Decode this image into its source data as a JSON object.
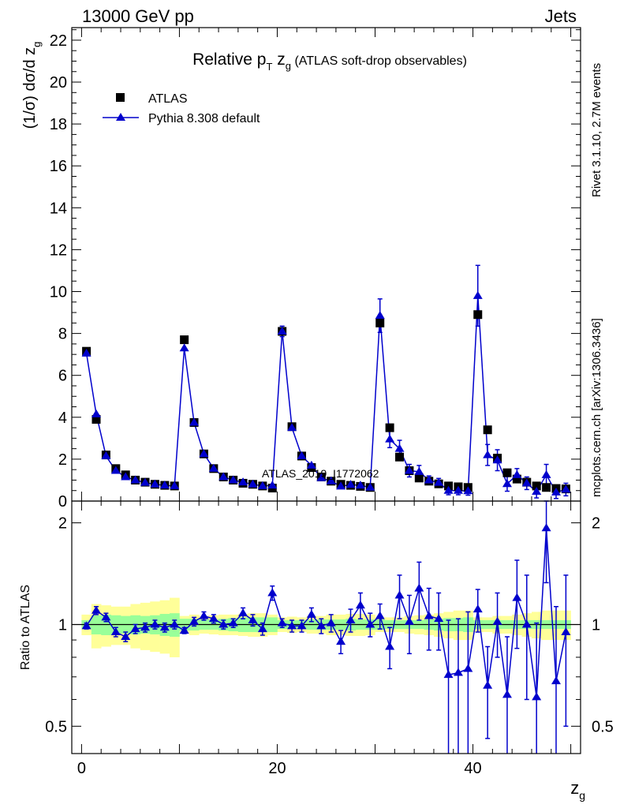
{
  "header": {
    "left": "13000 GeV pp",
    "right": "Jets"
  },
  "side_text": {
    "rivet": "Rivet 3.1.10,  2.7M events",
    "mcplots": "mcplots.cern.ch [arXiv:1306.3436]"
  },
  "watermark": "ATLAS_2019_I1772062",
  "legend": {
    "data_label": "ATLAS",
    "mc_label": "Pythia 8.308 default"
  },
  "colors": {
    "data": "#000000",
    "mc": "#0000cc",
    "band_inner": "#99ff99",
    "band_outer": "#ffff99",
    "watermark": "#999999"
  },
  "chart_data": [
    {
      "type": "scatter",
      "panel": "main",
      "title_parts": {
        "pre": "Relative p",
        "sub1": "T",
        "mid": " z",
        "sub2": "g",
        "post": " (ATLAS soft-drop observables)"
      },
      "ylabel": "(1/σ) dσ/d z",
      "ylabel_sub": "g",
      "xlim": [
        -1,
        51
      ],
      "ylim": [
        0,
        22.6
      ],
      "yticks": [
        0,
        2,
        4,
        6,
        8,
        10,
        12,
        14,
        16,
        18,
        20,
        22
      ],
      "grid": false,
      "legend_position": "top-left",
      "x": [
        0.5,
        1.5,
        2.5,
        3.5,
        4.5,
        5.5,
        6.5,
        7.5,
        8.5,
        9.5,
        10.5,
        11.5,
        12.5,
        13.5,
        14.5,
        15.5,
        16.5,
        17.5,
        18.5,
        19.5,
        20.5,
        21.5,
        22.5,
        23.5,
        24.5,
        25.5,
        26.5,
        27.5,
        28.5,
        29.5,
        30.5,
        31.5,
        32.5,
        33.5,
        34.5,
        35.5,
        36.5,
        37.5,
        38.5,
        39.5,
        40.5,
        41.5,
        42.5,
        43.5,
        44.5,
        45.5,
        46.5,
        47.5,
        48.5,
        49.5
      ],
      "series": [
        {
          "name": "ATLAS",
          "marker": "square",
          "values": [
            7.15,
            3.9,
            2.2,
            1.55,
            1.25,
            1.0,
            0.9,
            0.8,
            0.75,
            0.72,
            7.7,
            3.75,
            2.25,
            1.55,
            1.15,
            1.0,
            0.85,
            0.8,
            0.72,
            0.62,
            8.1,
            3.55,
            2.15,
            1.6,
            1.15,
            0.95,
            0.8,
            0.75,
            0.7,
            0.65,
            8.5,
            3.5,
            2.1,
            1.45,
            1.1,
            0.95,
            0.82,
            0.72,
            0.68,
            0.65,
            8.9,
            3.4,
            2.05,
            1.35,
            1.05,
            0.9,
            0.72,
            0.65,
            0.6,
            0.58
          ]
        },
        {
          "name": "Pythia 8.308 default",
          "marker": "triangle",
          "values": [
            7.05,
            4.15,
            2.15,
            1.45,
            1.15,
            1.0,
            0.88,
            0.8,
            0.75,
            0.72,
            7.3,
            3.75,
            2.25,
            1.55,
            1.15,
            1.0,
            0.9,
            0.8,
            0.72,
            0.75,
            8.1,
            3.5,
            2.15,
            1.7,
            1.1,
            0.95,
            0.7,
            0.78,
            0.75,
            0.65,
            8.85,
            2.95,
            2.5,
            1.45,
            1.4,
            1.0,
            0.88,
            0.5,
            0.5,
            0.48,
            9.8,
            2.2,
            1.95,
            0.82,
            1.25,
            0.85,
            0.45,
            1.25,
            0.42,
            0.55
          ],
          "errors": [
            0.1,
            0.1,
            0.08,
            0.08,
            0.07,
            0.06,
            0.06,
            0.05,
            0.05,
            0.05,
            0.15,
            0.1,
            0.1,
            0.08,
            0.06,
            0.06,
            0.06,
            0.05,
            0.05,
            0.05,
            0.25,
            0.15,
            0.1,
            0.1,
            0.08,
            0.07,
            0.07,
            0.07,
            0.06,
            0.05,
            0.8,
            0.4,
            0.4,
            0.3,
            0.3,
            0.2,
            0.2,
            0.2,
            0.2,
            0.2,
            1.45,
            0.5,
            0.5,
            0.35,
            0.3,
            0.3,
            0.3,
            0.5,
            0.3,
            0.3
          ]
        }
      ]
    },
    {
      "type": "scatter",
      "panel": "ratio",
      "ylabel": "Ratio to ATLAS",
      "xlabel": "z",
      "xlabel_sub": "g",
      "xlim": [
        -1,
        51
      ],
      "ylim": [
        0.415,
        2.32
      ],
      "log_y": true,
      "yticks": [
        0.5,
        1,
        2
      ],
      "xticks": [
        0,
        20,
        40
      ],
      "grid": false,
      "reference_line": 1,
      "band_inner_halfwidth": [
        0.03,
        0.065,
        0.07,
        0.065,
        0.06,
        0.065,
        0.06,
        0.065,
        0.075,
        0.08,
        0.04,
        0.04,
        0.035,
        0.035,
        0.04,
        0.045,
        0.05,
        0.05,
        0.05,
        0.05,
        0.03,
        0.03,
        0.03,
        0.035,
        0.035,
        0.035,
        0.035,
        0.04,
        0.035,
        0.035,
        0.035,
        0.03,
        0.03,
        0.03,
        0.03,
        0.035,
        0.04,
        0.045,
        0.045,
        0.05,
        0.03,
        0.03,
        0.03,
        0.03,
        0.03,
        0.03,
        0.03,
        0.03,
        0.03,
        0.03
      ],
      "band_outer_halfwidth": [
        0.07,
        0.15,
        0.14,
        0.13,
        0.13,
        0.15,
        0.16,
        0.17,
        0.18,
        0.2,
        0.06,
        0.07,
        0.06,
        0.065,
        0.07,
        0.07,
        0.075,
        0.08,
        0.08,
        0.07,
        0.05,
        0.055,
        0.05,
        0.06,
        0.06,
        0.07,
        0.07,
        0.075,
        0.075,
        0.07,
        0.05,
        0.05,
        0.05,
        0.06,
        0.065,
        0.07,
        0.08,
        0.09,
        0.1,
        0.1,
        0.05,
        0.05,
        0.06,
        0.06,
        0.07,
        0.08,
        0.09,
        0.1,
        0.1,
        0.1
      ],
      "x": [
        0.5,
        1.5,
        2.5,
        3.5,
        4.5,
        5.5,
        6.5,
        7.5,
        8.5,
        9.5,
        10.5,
        11.5,
        12.5,
        13.5,
        14.5,
        15.5,
        16.5,
        17.5,
        18.5,
        19.5,
        20.5,
        21.5,
        22.5,
        23.5,
        24.5,
        25.5,
        26.5,
        27.5,
        28.5,
        29.5,
        30.5,
        31.5,
        32.5,
        33.5,
        34.5,
        35.5,
        36.5,
        37.5,
        38.5,
        39.5,
        40.5,
        41.5,
        42.5,
        43.5,
        44.5,
        45.5,
        46.5,
        47.5,
        48.5,
        49.5
      ],
      "series": [
        {
          "name": "Pythia 8.308 default",
          "marker": "triangle",
          "values": [
            0.99,
            1.1,
            1.05,
            0.95,
            0.92,
            0.97,
            0.98,
            1.0,
            0.98,
            1.0,
            0.96,
            1.02,
            1.06,
            1.04,
            1.0,
            1.01,
            1.08,
            1.03,
            0.97,
            1.24,
            1.01,
            0.99,
            0.99,
            1.07,
            0.99,
            1.01,
            0.89,
            1.03,
            1.14,
            1.0,
            1.06,
            0.86,
            1.22,
            1.02,
            1.28,
            1.06,
            1.04,
            0.71,
            0.72,
            0.74,
            1.11,
            0.66,
            1.02,
            0.62,
            1.2,
            1.0,
            0.61,
            1.93,
            0.68,
            0.95
          ],
          "errors": [
            0.02,
            0.03,
            0.03,
            0.03,
            0.03,
            0.03,
            0.03,
            0.03,
            0.03,
            0.03,
            0.02,
            0.03,
            0.03,
            0.03,
            0.03,
            0.03,
            0.04,
            0.04,
            0.04,
            0.06,
            0.03,
            0.04,
            0.04,
            0.05,
            0.05,
            0.06,
            0.07,
            0.08,
            0.1,
            0.08,
            0.09,
            0.12,
            0.18,
            0.2,
            0.25,
            0.22,
            0.2,
            0.32,
            0.32,
            0.35,
            0.16,
            0.2,
            0.22,
            0.3,
            0.35,
            0.4,
            0.4,
            0.6,
            0.45,
            0.45
          ]
        }
      ]
    }
  ]
}
